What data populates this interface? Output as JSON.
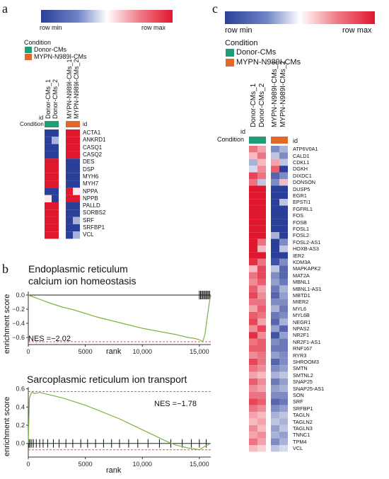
{
  "panels": {
    "a": "a",
    "b": "b",
    "c": "c"
  },
  "colors": {
    "donor": "#1e9e78",
    "mutant": "#e0682a",
    "low": "#2a3f9a",
    "high": "#e0182e",
    "gsea": "#7cb342"
  },
  "scale": {
    "min_label": "row min",
    "max_label": "row max"
  },
  "legend": {
    "title": "Condition",
    "donor": "Donor-CMs",
    "mutant": "MYPN-N989I-CMs"
  },
  "row_labels": {
    "id": "id",
    "condition": "Condition"
  },
  "heatmap_a": {
    "columns": [
      "Donor-CMs_1",
      "Donor-CMs_2",
      "MYPN-N989I-CMs_1",
      "MYPN-N989I-CMs_2"
    ],
    "genes": [
      "ACTA1",
      "ANKRD1",
      "CASQ1",
      "CASQ2",
      "DES",
      "DSP",
      "MYH6",
      "MYH7",
      "NPPA",
      "NPPB",
      "PALLD",
      "SORBS2",
      "SRF",
      "SRFBP1",
      "VCL"
    ],
    "values": [
      [
        -1,
        -1,
        1,
        1
      ],
      [
        -1,
        -0.4,
        1,
        1
      ],
      [
        -1,
        -1,
        1,
        1
      ],
      [
        -1,
        -1,
        1,
        1
      ],
      [
        1,
        1,
        -1,
        -1
      ],
      [
        1,
        1,
        -1,
        -1
      ],
      [
        1,
        1,
        -1,
        -1
      ],
      [
        1,
        1,
        -1,
        -1
      ],
      [
        -1,
        -1,
        1,
        0.1
      ],
      [
        0.1,
        -1,
        1,
        1
      ],
      [
        1,
        1,
        -1,
        -1
      ],
      [
        1,
        1,
        -1,
        -1
      ],
      [
        1,
        1,
        -1,
        -0.4
      ],
      [
        1,
        1,
        -1,
        -1
      ],
      [
        1,
        1,
        -1,
        -0.4
      ]
    ]
  },
  "heatmap_c": {
    "columns": [
      "Donor-CMs_1",
      "Donor-CMs_2",
      "MYPN-N989I-CMs_1",
      "MYPN-N989I-CMs_2"
    ],
    "genes": [
      "ATP6V0A1",
      "CALD1",
      "CDKL1",
      "DGKH",
      "DIXDC1",
      "DONSON",
      "DUSP5",
      "EGR1",
      "EPSTI1",
      "FGFRL1",
      "FOS",
      "FOSB",
      "FOSL1",
      "FOSL2",
      "FOSL2-AS1",
      "HOXB-AS3",
      "IER2",
      "KDM3A",
      "MAPKAPK2",
      "MAT2A",
      "MBNL1",
      "MBNL1-AS1",
      "MBTD1",
      "MIER2",
      "MYL6",
      "MYL6B",
      "NEGR1",
      "NPAS2",
      "NR2F1",
      "NR2F1-AS1",
      "RNF167",
      "RYR3",
      "SHROOM3",
      "SMTN",
      "SMTNL2",
      "SNAP25",
      "SNAP25-AS1",
      "SON",
      "SRF",
      "SRFBP1",
      "TAGLN",
      "TAGLN2",
      "TAGLN3",
      "TNNC1",
      "TPM4",
      "VCL"
    ],
    "values": [
      [
        0.6,
        0.4,
        -0.6,
        -0.4
      ],
      [
        0.3,
        0.6,
        -0.3,
        -0.6
      ],
      [
        -0.4,
        0.3,
        0.4,
        -0.3
      ],
      [
        -0.2,
        0.5,
        0.7,
        -1
      ],
      [
        0.8,
        0.6,
        -0.8,
        -0.6
      ],
      [
        0.6,
        -0.3,
        -0.6,
        0.3
      ],
      [
        1,
        1,
        -1,
        -1
      ],
      [
        1,
        1,
        -1,
        -1
      ],
      [
        1,
        1,
        -1,
        -0.3
      ],
      [
        1,
        1,
        -1,
        -1
      ],
      [
        1,
        1,
        -1,
        -1
      ],
      [
        1,
        1,
        -1,
        -1
      ],
      [
        1,
        1,
        -1,
        -1
      ],
      [
        1,
        1,
        -0.4,
        -1
      ],
      [
        1,
        0.6,
        -1,
        -0.6
      ],
      [
        1,
        0.3,
        -1,
        -0.3
      ],
      [
        1,
        1,
        -1,
        -1
      ],
      [
        0.9,
        0.6,
        -0.9,
        -0.6
      ],
      [
        0.3,
        0.8,
        -0.3,
        -0.8
      ],
      [
        0.6,
        0.8,
        -0.6,
        -0.8
      ],
      [
        0.5,
        0.7,
        -0.5,
        -0.7
      ],
      [
        0.7,
        0.4,
        -0.7,
        -0.4
      ],
      [
        0.8,
        0.5,
        -0.8,
        -0.5
      ],
      [
        0.6,
        0.6,
        -0.6,
        -0.6
      ],
      [
        0.4,
        0.7,
        -0.4,
        -0.7
      ],
      [
        0.7,
        0.6,
        -0.7,
        -0.6
      ],
      [
        0.8,
        0.4,
        -0.8,
        -0.4
      ],
      [
        0.5,
        0.8,
        -0.5,
        -0.8
      ],
      [
        0.9,
        0.5,
        -0.9,
        -0.5
      ],
      [
        0.6,
        0.7,
        -0.6,
        -0.7
      ],
      [
        0.7,
        0.7,
        -0.7,
        -0.7
      ],
      [
        0.5,
        0.6,
        -0.5,
        -0.6
      ],
      [
        0.8,
        0.6,
        -0.8,
        -0.6
      ],
      [
        0.6,
        0.5,
        -0.6,
        -0.5
      ],
      [
        0.4,
        0.3,
        -0.4,
        -0.3
      ],
      [
        0.7,
        0.5,
        -0.7,
        -0.5
      ],
      [
        0.5,
        0.4,
        -0.5,
        -0.4
      ],
      [
        0.6,
        0.6,
        -0.6,
        -0.6
      ],
      [
        0.8,
        0.7,
        -0.8,
        -0.7
      ],
      [
        0.6,
        0.5,
        -0.6,
        -0.5
      ],
      [
        0.4,
        0.3,
        -0.4,
        -0.3
      ],
      [
        0.3,
        0.4,
        -0.3,
        -0.4
      ],
      [
        0.5,
        0.3,
        -0.5,
        -0.3
      ],
      [
        0.4,
        0.5,
        -0.4,
        -0.5
      ],
      [
        0.6,
        0.4,
        -0.6,
        -0.4
      ],
      [
        0.3,
        0.2,
        -0.3,
        -0.2
      ]
    ]
  },
  "chart_data": [
    {
      "type": "line",
      "title": "Endoplasmic reticulum calcium ion homeostasis",
      "title_lines": [
        "Endoplasmic reticulum",
        "calcium ion homeostasis"
      ],
      "xlabel": "rank",
      "ylabel": "enrichment score",
      "xlim": [
        0,
        16000
      ],
      "ylim": [
        -0.7,
        0.05
      ],
      "xticks": [
        0,
        5000,
        10000,
        15000
      ],
      "xtick_labels": [
        "0",
        "5000",
        "10,000",
        "15,000"
      ],
      "yticks": [
        0.0,
        -0.2,
        -0.4,
        -0.6
      ],
      "ytick_labels": [
        "0.0",
        "−0.2",
        "−0.4",
        "−0.6"
      ],
      "annotation": "NES =−2.02",
      "es_min": -0.66,
      "series": [
        {
          "x": [
            0,
            500,
            1000,
            2000,
            3000,
            4000,
            5000,
            6000,
            7000,
            8000,
            9000,
            10000,
            11000,
            12000,
            13000,
            14000,
            14500,
            15000,
            15300,
            15500,
            15700,
            15900,
            16000
          ],
          "y": [
            0.0,
            -0.03,
            -0.06,
            -0.12,
            -0.17,
            -0.21,
            -0.26,
            -0.31,
            -0.35,
            -0.39,
            -0.43,
            -0.47,
            -0.5,
            -0.53,
            -0.56,
            -0.6,
            -0.61,
            -0.63,
            -0.66,
            -0.55,
            -0.3,
            -0.08,
            0.0
          ]
        }
      ],
      "hits": [
        15000,
        15100,
        15200,
        15300,
        15400,
        15500,
        15600,
        15700,
        15800,
        15900
      ]
    },
    {
      "type": "line",
      "title": "Sarcoplasmic reticulum ion transport",
      "xlabel": "rank",
      "ylabel": "enrichment score",
      "xlim": [
        0,
        16000
      ],
      "ylim": [
        -0.15,
        0.62
      ],
      "xticks": [
        0,
        5000,
        10000,
        15000
      ],
      "xtick_labels": [
        "0",
        "5000",
        "10,000",
        "15,000"
      ],
      "yticks": [
        0.6,
        0.4,
        0.2,
        0.0
      ],
      "ytick_labels": [
        "0.6",
        "0.4",
        "0.2",
        "0.0"
      ],
      "annotation": "NES =−1.78",
      "es_max": 0.57,
      "es_min": -0.07,
      "series": [
        {
          "x": [
            0,
            100,
            300,
            600,
            1000,
            2000,
            3000,
            4000,
            5000,
            6000,
            7000,
            8000,
            9000,
            10000,
            11000,
            12000,
            13000,
            14000,
            14500,
            15000,
            15500,
            16000
          ],
          "y": [
            0.0,
            0.5,
            0.56,
            0.55,
            0.56,
            0.53,
            0.5,
            0.46,
            0.42,
            0.37,
            0.32,
            0.27,
            0.21,
            0.15,
            0.09,
            0.03,
            -0.02,
            -0.05,
            -0.06,
            -0.07,
            -0.03,
            0.0
          ]
        }
      ],
      "hits": [
        50,
        150,
        300,
        450,
        700,
        1000,
        1300,
        1700,
        2200,
        2700,
        3300,
        3900,
        4600,
        5200,
        5900,
        6600,
        7300,
        8000,
        8800,
        9600,
        10500,
        11500,
        12500,
        13500,
        14300,
        15000,
        15600
      ]
    }
  ]
}
